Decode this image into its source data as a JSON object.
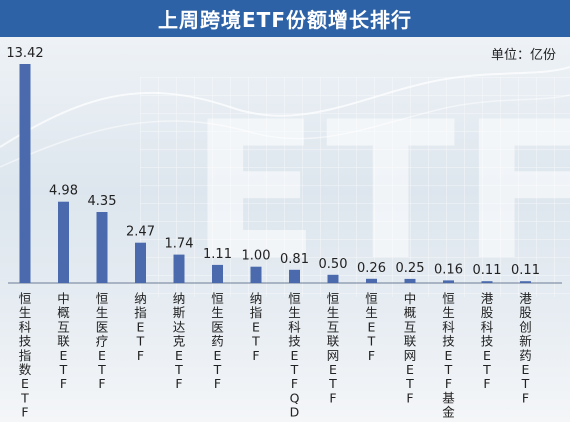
{
  "title": "上周跨境ETF份额增长排行",
  "unit_label": "单位：亿份",
  "colors": {
    "title_bar": "#2e62a7",
    "bar": "#4a6aad",
    "text": "#222222"
  },
  "chart_data": {
    "type": "bar",
    "title": "上周跨境ETF份额增长排行",
    "unit": "亿份",
    "categories": [
      "恒生科技指数ETF",
      "中概互联ETF",
      "恒生医疗ETF",
      "纳指ETF",
      "纳斯达克ETF",
      "恒生医药ETF",
      "纳指ETF",
      "恒生科技ETFQD",
      "恒生互联网ETF",
      "恒生ETF",
      "中概互联网ETF",
      "恒生科技ETF基金",
      "港股科技ETF",
      "港股创新药ETF"
    ],
    "values": [
      13.42,
      4.98,
      4.35,
      2.47,
      1.74,
      1.11,
      1.0,
      0.81,
      0.5,
      0.26,
      0.25,
      0.16,
      0.11,
      0.11
    ],
    "value_labels": [
      "13.42",
      "4.98",
      "4.35",
      "2.47",
      "1.74",
      "1.11",
      "1.00",
      "0.81",
      "0.50",
      "0.26",
      "0.25",
      "0.16",
      "0.11",
      "0.11"
    ],
    "ylim": [
      0,
      13.42
    ],
    "grid": false,
    "legend": "none"
  }
}
